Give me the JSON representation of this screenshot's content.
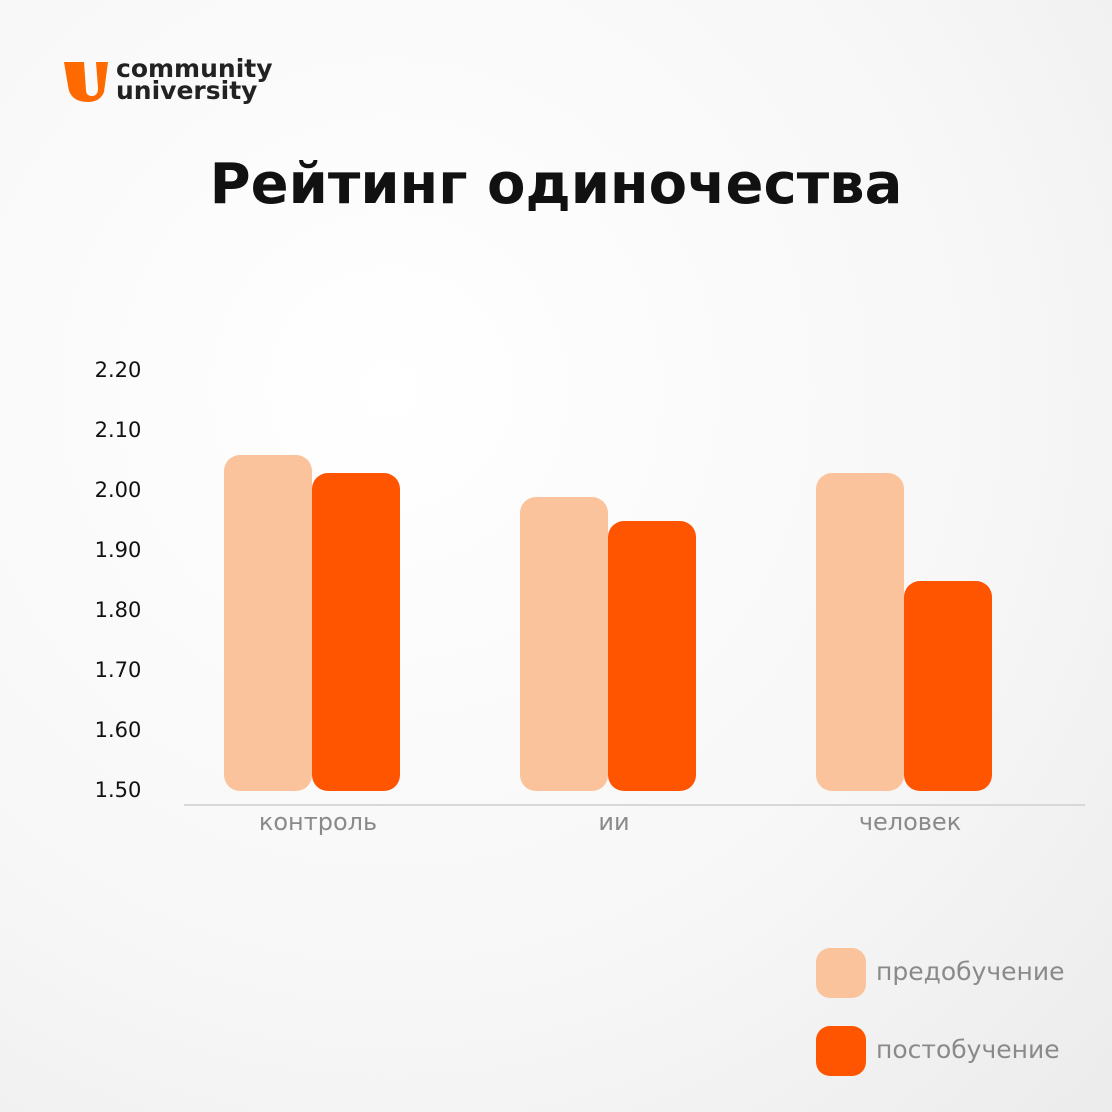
{
  "logo": {
    "line1": "community",
    "line2": "university"
  },
  "chart_data": {
    "type": "bar",
    "title": "Рейтинг одиночества",
    "categories": [
      "контроль",
      "ии",
      "человек"
    ],
    "series": [
      {
        "name": "предобучение",
        "color": "#fbc39b",
        "values": [
          2.06,
          1.99,
          2.03
        ]
      },
      {
        "name": "постобучение",
        "color": "#ff5500",
        "values": [
          2.03,
          1.95,
          1.85
        ]
      }
    ],
    "ylim": [
      1.5,
      2.2
    ],
    "yticks": [
      {
        "value": 1.5,
        "label": "1.50"
      },
      {
        "value": 1.6,
        "label": "1.60"
      },
      {
        "value": 1.7,
        "label": "1.70"
      },
      {
        "value": 1.8,
        "label": "1.80"
      },
      {
        "value": 1.9,
        "label": "1.90"
      },
      {
        "value": 2.0,
        "label": "2.00"
      },
      {
        "value": 2.1,
        "label": "2.10"
      },
      {
        "value": 2.2,
        "label": "2.20"
      }
    ],
    "grid": false,
    "legend": "bottom-right"
  }
}
